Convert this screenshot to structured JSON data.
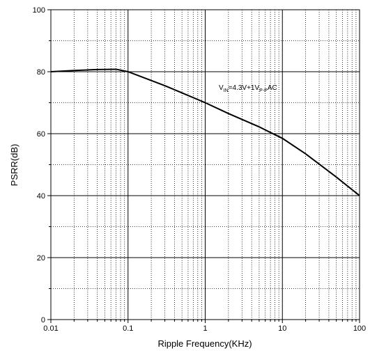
{
  "chart_data": {
    "type": "line",
    "title": "",
    "xlabel": "Ripple Frequency(KHz)",
    "ylabel": "PSRR(dB)",
    "xscale": "log",
    "xlim": [
      0.01,
      100
    ],
    "ylim": [
      0,
      100
    ],
    "x_ticks": [
      "0.01",
      "0.1",
      "1",
      "10",
      "100"
    ],
    "y_ticks": [
      "0",
      "20",
      "40",
      "60",
      "80",
      "100"
    ],
    "grid": true,
    "annotation": {
      "v": "V",
      "in_sub": "IN",
      "mid": "=4.3V+1V",
      "pp_sub": "P-P",
      "tail": "AC"
    },
    "series": [
      {
        "x": [
          0.01,
          0.02,
          0.04,
          0.07,
          0.1,
          0.3,
          1,
          2,
          5,
          10,
          20,
          50,
          100
        ],
        "y": [
          80,
          80.4,
          80.7,
          80.8,
          80,
          75.5,
          70,
          66.5,
          62.2,
          58.5,
          53.5,
          46,
          40
        ]
      }
    ]
  }
}
